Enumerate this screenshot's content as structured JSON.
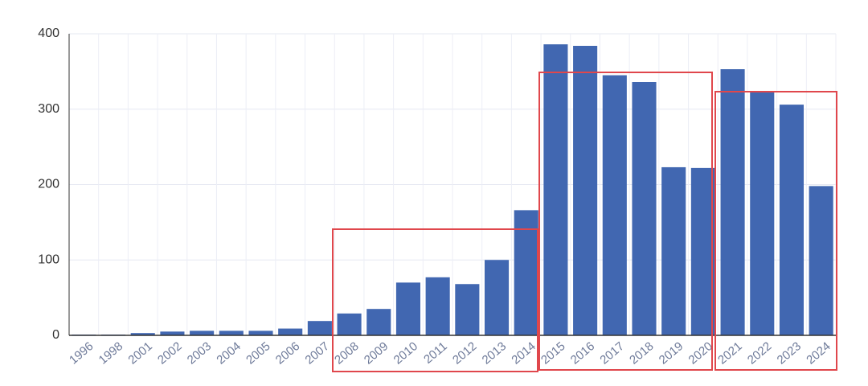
{
  "chart_data": {
    "type": "bar",
    "categories": [
      "1996",
      "1998",
      "2001",
      "2002",
      "2003",
      "2004",
      "2005",
      "2006",
      "2007",
      "2008",
      "2009",
      "2010",
      "2011",
      "2012",
      "2013",
      "2014",
      "2015",
      "2016",
      "2017",
      "2018",
      "2019",
      "2020",
      "2021",
      "2022",
      "2023",
      "2024"
    ],
    "values": [
      1,
      1,
      3,
      5,
      6,
      6,
      6,
      9,
      19,
      29,
      35,
      70,
      77,
      68,
      100,
      166,
      386,
      384,
      345,
      336,
      223,
      222,
      353,
      323,
      306,
      198
    ],
    "color": "#4167b1",
    "ylim": [
      0,
      400
    ],
    "yticks": [
      0,
      100,
      200,
      300,
      400
    ],
    "grid": true
  }
}
